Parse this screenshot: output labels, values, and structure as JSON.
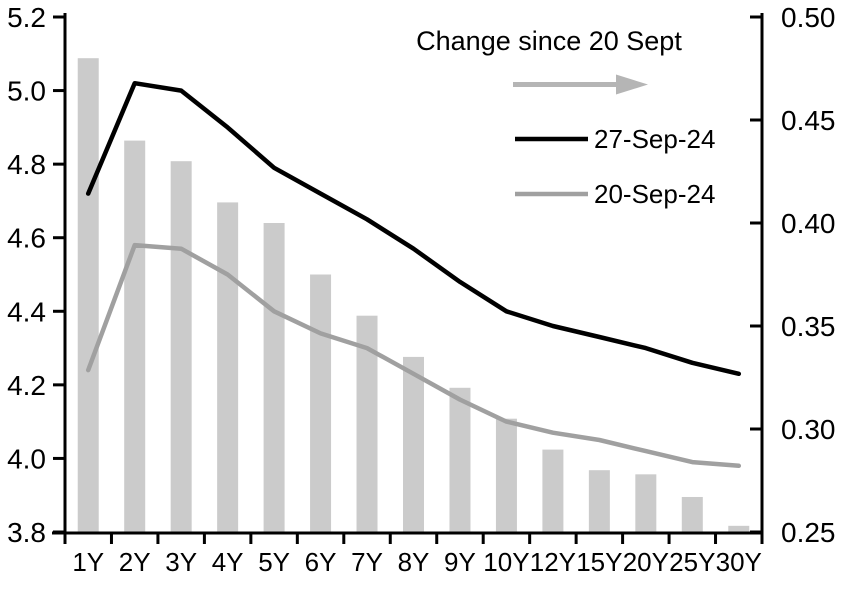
{
  "chart_data": {
    "type": "bar",
    "subtype": "dual-axis bar + two lines",
    "title": "",
    "categories": [
      "1Y",
      "2Y",
      "3Y",
      "4Y",
      "5Y",
      "6Y",
      "7Y",
      "8Y",
      "9Y",
      "10Y",
      "12Y",
      "15Y",
      "20Y",
      "25Y",
      "30Y"
    ],
    "left_axis": {
      "min": 3.8,
      "max": 5.2,
      "tick_values": [
        5.2,
        5.0,
        4.8,
        4.6,
        4.4,
        4.2,
        4.0,
        3.8
      ],
      "tick_labels": [
        "5.2",
        "5.0",
        "4.8",
        "4.6",
        "4.4",
        "4.2",
        "4.0",
        "3.8"
      ]
    },
    "right_axis": {
      "min": 0.25,
      "max": 0.5,
      "tick_values": [
        0.5,
        0.45,
        0.4,
        0.35,
        0.3,
        0.25
      ],
      "tick_labels": [
        "0.50",
        "0.45",
        "0.40",
        "0.35",
        "0.30",
        "0.25"
      ]
    },
    "series": [
      {
        "name": "27-Sep-24",
        "type": "line",
        "axis": "left",
        "color": "#000000",
        "values": [
          4.72,
          5.02,
          5.0,
          4.9,
          4.79,
          4.72,
          4.65,
          4.57,
          4.48,
          4.4,
          4.36,
          4.33,
          4.3,
          4.26,
          4.23
        ]
      },
      {
        "name": "20-Sep-24",
        "type": "line",
        "axis": "left",
        "color": "#a0a0a0",
        "values": [
          4.24,
          4.58,
          4.57,
          4.5,
          4.4,
          4.34,
          4.3,
          4.23,
          4.16,
          4.1,
          4.07,
          4.05,
          4.02,
          3.99,
          3.98
        ]
      },
      {
        "name": "Change since 20 Sept",
        "type": "bar",
        "axis": "right",
        "color": "#cbcbcb",
        "values": [
          0.48,
          0.44,
          0.43,
          0.41,
          0.4,
          0.375,
          0.355,
          0.335,
          0.32,
          0.305,
          0.29,
          0.28,
          0.278,
          0.267,
          0.253
        ]
      }
    ],
    "legend": {
      "title": "Change since 20 Sept",
      "arrow_color": "#b5b5b5",
      "position": "top-right",
      "grid": "off"
    }
  }
}
